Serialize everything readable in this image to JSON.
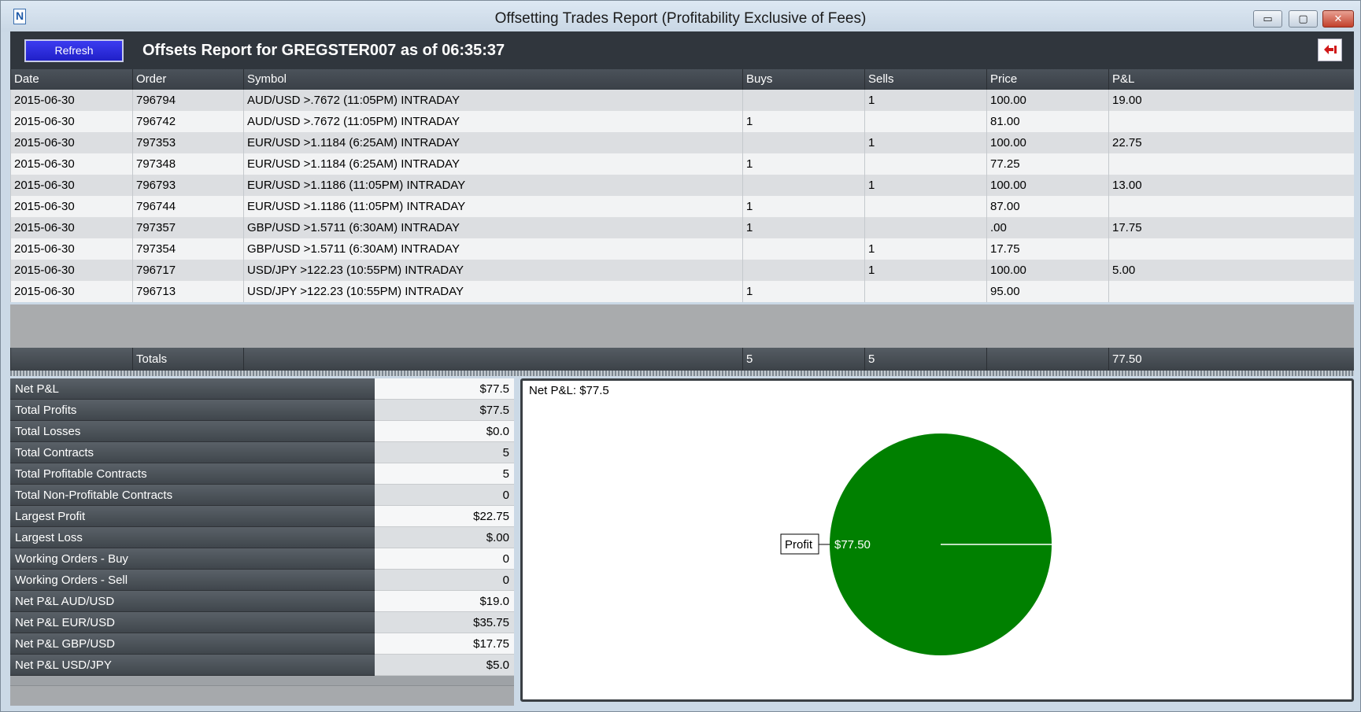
{
  "window": {
    "title": "Offsetting Trades Report (Profitability Exclusive of Fees)",
    "controls": {
      "minimize": "▭",
      "maximize": "▢",
      "close": "✕"
    }
  },
  "header": {
    "refresh_label": "Refresh",
    "report_title": "Offsets Report for GREGSTER007 as of 06:35:37",
    "export_icon": "export-icon"
  },
  "grid": {
    "columns": [
      "Date",
      "Order",
      "Symbol",
      "Buys",
      "Sells",
      "Price",
      "P&L"
    ],
    "rows": [
      [
        "2015-06-30",
        "796794",
        "AUD/USD >.7672 (11:05PM) INTRADAY",
        "",
        "1",
        "100.00",
        "19.00"
      ],
      [
        "2015-06-30",
        "796742",
        "AUD/USD >.7672 (11:05PM) INTRADAY",
        "1",
        "",
        "81.00",
        ""
      ],
      [
        "2015-06-30",
        "797353",
        "EUR/USD >1.1184 (6:25AM) INTRADAY",
        "",
        "1",
        "100.00",
        "22.75"
      ],
      [
        "2015-06-30",
        "797348",
        "EUR/USD >1.1184 (6:25AM) INTRADAY",
        "1",
        "",
        "77.25",
        ""
      ],
      [
        "2015-06-30",
        "796793",
        "EUR/USD >1.1186 (11:05PM) INTRADAY",
        "",
        "1",
        "100.00",
        "13.00"
      ],
      [
        "2015-06-30",
        "796744",
        "EUR/USD >1.1186 (11:05PM) INTRADAY",
        "1",
        "",
        "87.00",
        ""
      ],
      [
        "2015-06-30",
        "797357",
        "GBP/USD >1.5711 (6:30AM) INTRADAY",
        "1",
        "",
        ".00",
        "17.75"
      ],
      [
        "2015-06-30",
        "797354",
        "GBP/USD >1.5711 (6:30AM) INTRADAY",
        "",
        "1",
        "17.75",
        ""
      ],
      [
        "2015-06-30",
        "796717",
        "USD/JPY >122.23 (10:55PM) INTRADAY",
        "",
        "1",
        "100.00",
        "5.00"
      ],
      [
        "2015-06-30",
        "796713",
        "USD/JPY >122.23 (10:55PM) INTRADAY",
        "1",
        "",
        "95.00",
        ""
      ]
    ],
    "totals": [
      "",
      "Totals",
      "",
      "5",
      "5",
      "",
      "77.50"
    ]
  },
  "stats": [
    {
      "label": "Net P&L",
      "value": "$77.5"
    },
    {
      "label": "Total Profits",
      "value": "$77.5"
    },
    {
      "label": "Total Losses",
      "value": "$0.0"
    },
    {
      "label": "Total Contracts",
      "value": "5"
    },
    {
      "label": "Total Profitable Contracts",
      "value": "5"
    },
    {
      "label": "Total Non-Profitable Contracts",
      "value": "0"
    },
    {
      "label": "Largest Profit",
      "value": "$22.75"
    },
    {
      "label": "Largest Loss",
      "value": "$.00"
    },
    {
      "label": "Working Orders - Buy",
      "value": "0"
    },
    {
      "label": "Working Orders - Sell",
      "value": "0"
    },
    {
      "label": "Net P&L AUD/USD",
      "value": "$19.0"
    },
    {
      "label": "Net P&L EUR/USD",
      "value": "$35.75"
    },
    {
      "label": "Net P&L GBP/USD",
      "value": "$17.75"
    },
    {
      "label": "Net P&L USD/JPY",
      "value": "$5.0"
    }
  ],
  "chart_data": {
    "type": "pie",
    "title": "Net P&L: $77.5",
    "slices": [
      {
        "label": "Profit",
        "value": 77.5,
        "value_label": "$77.50",
        "color": "#008000"
      }
    ]
  },
  "colors": {
    "accent": "#2a2ad8",
    "header_dark": "#30363d",
    "profit": "#008000"
  }
}
